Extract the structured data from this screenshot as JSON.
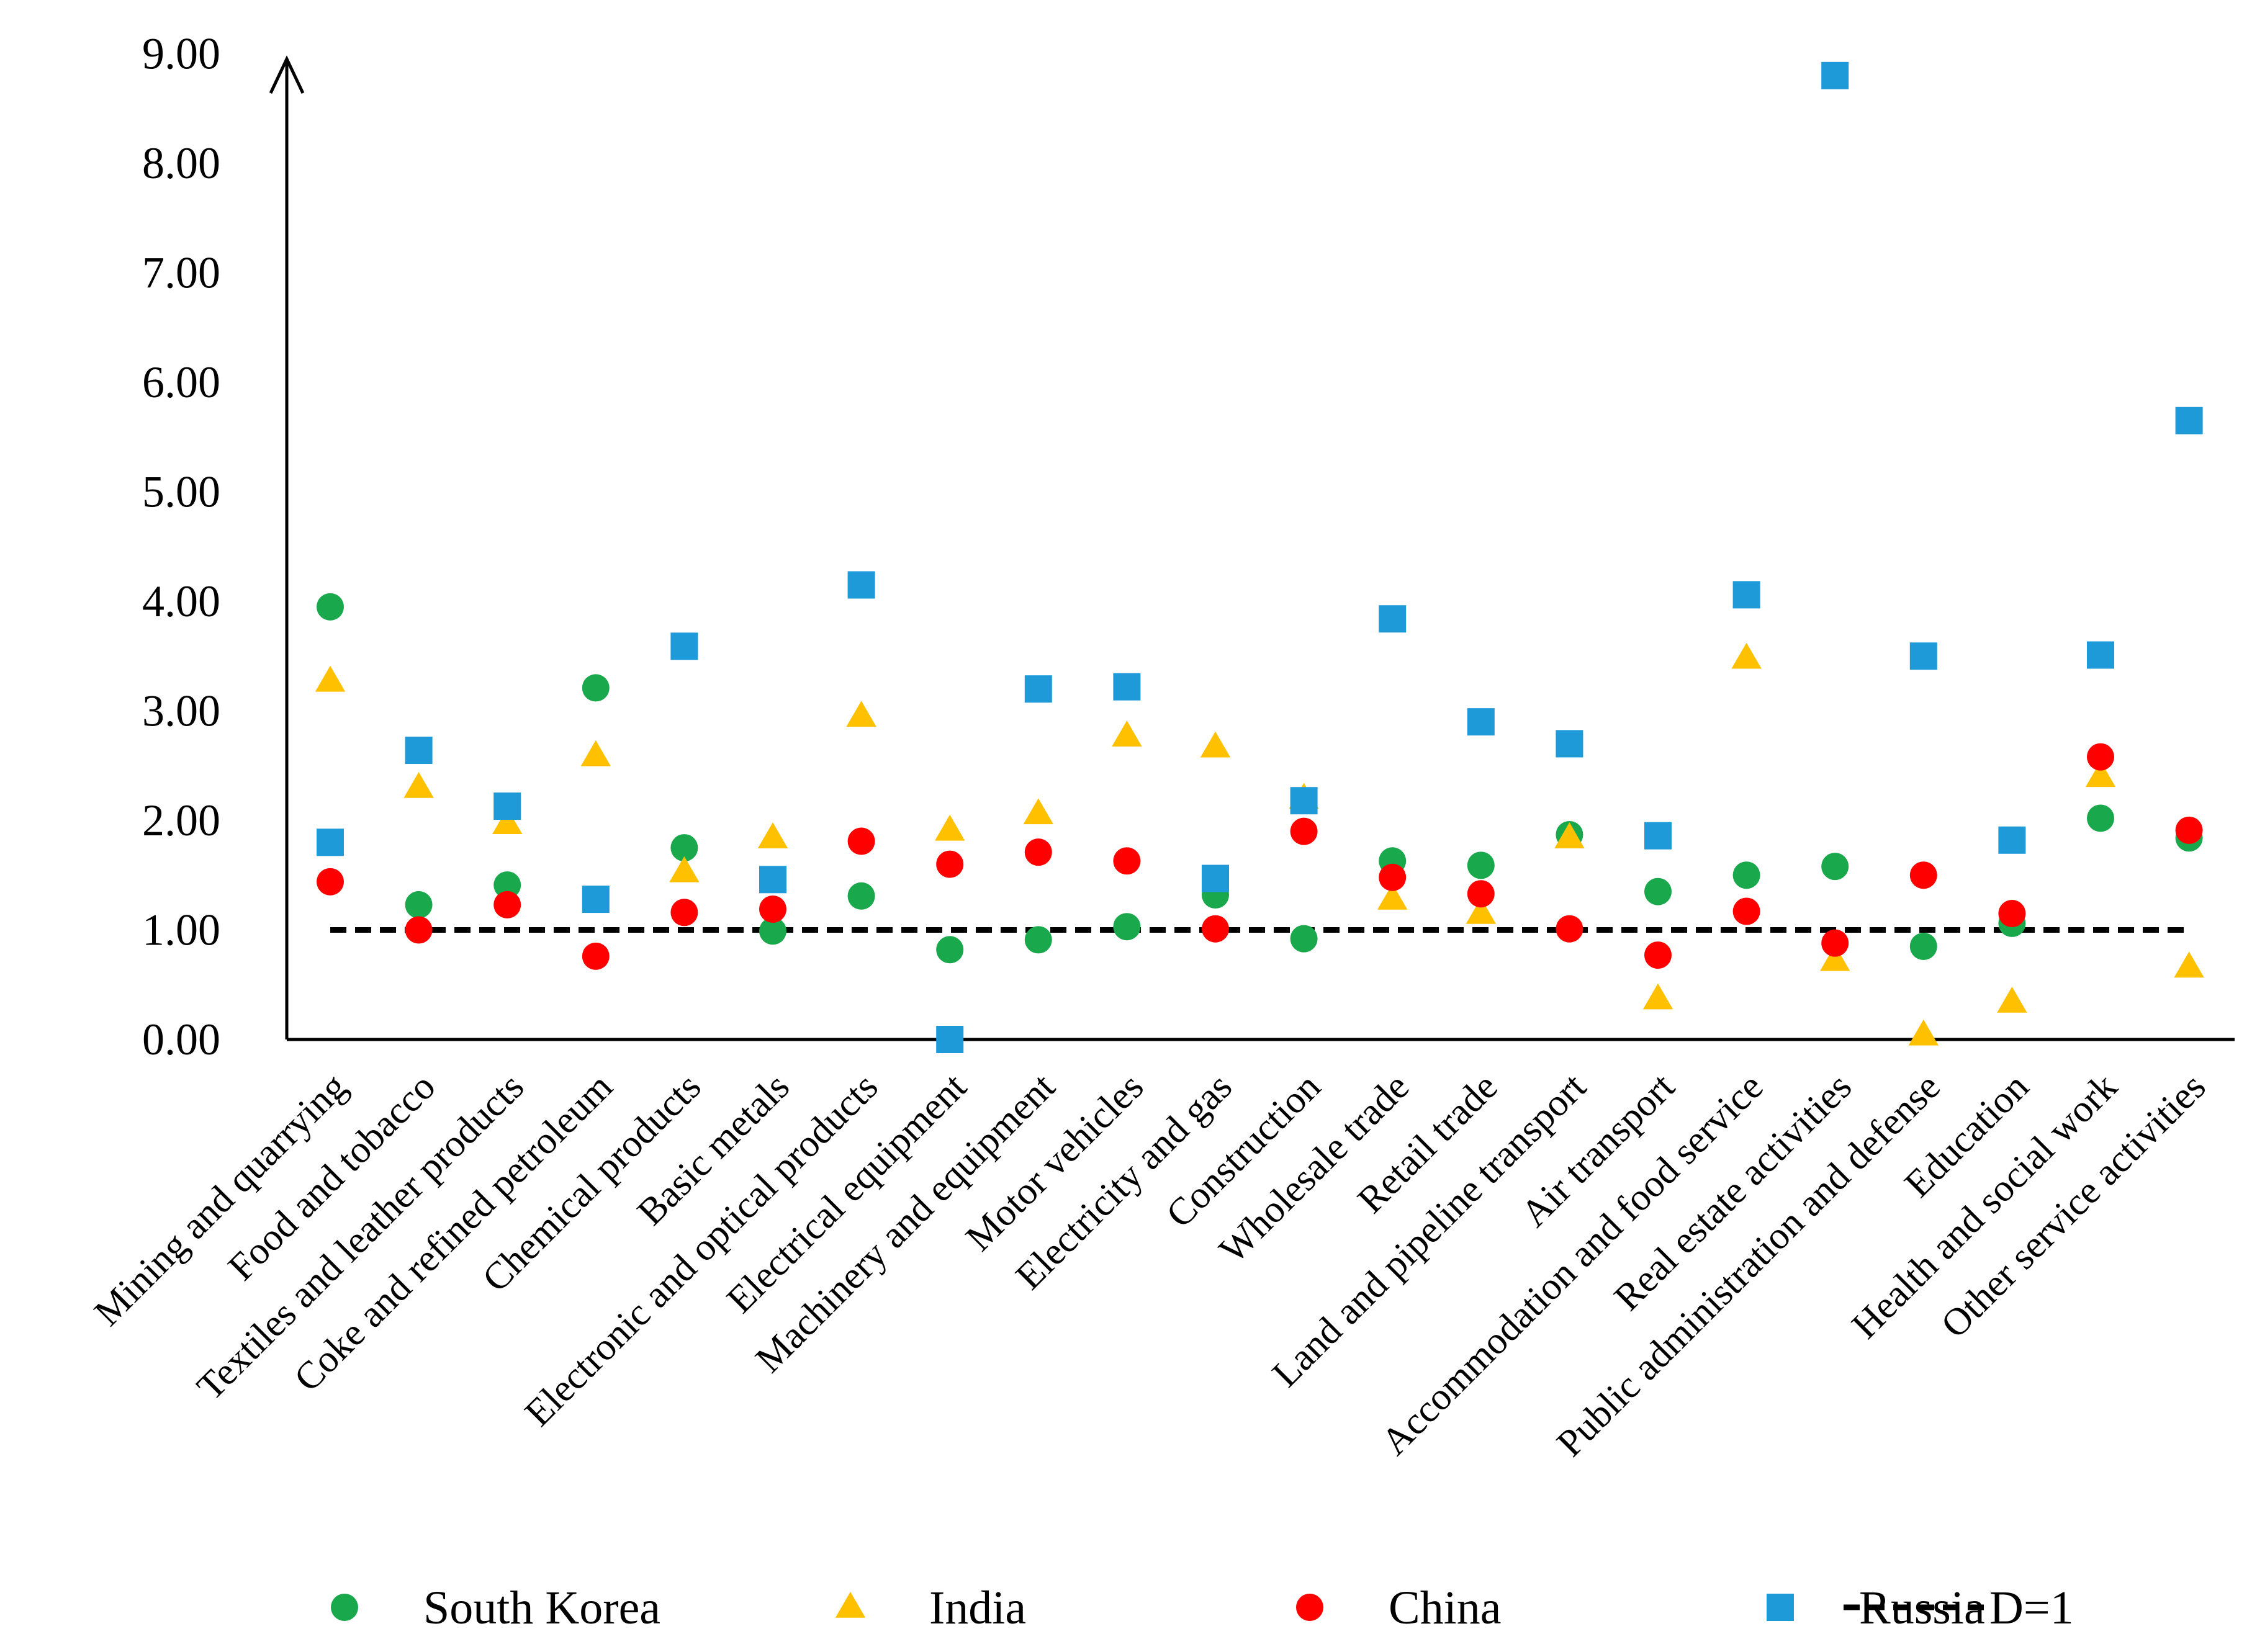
{
  "chart_data": {
    "type": "scatter",
    "title": "",
    "xlabel": "",
    "ylabel": "",
    "ylim": [
      0,
      9
    ],
    "y_ticks": [
      "0.00",
      "1.00",
      "2.00",
      "3.00",
      "4.00",
      "5.00",
      "6.00",
      "7.00",
      "8.00",
      "9.00"
    ],
    "categories": [
      "Mining and quarrying",
      "Food and tobacco",
      "Textiles and leather products",
      "Coke and refined petroleum",
      "Chemical products",
      "Basic metals",
      "Electronic and optical products",
      "Electrical equipment",
      "Machinery and equipment",
      "Motor vehicles",
      "Electricity and gas",
      "Construction",
      "Wholesale trade",
      "Retail trade",
      "Land and pipeline transport",
      "Air transport",
      "Accommodation and food service",
      "Real estate activities",
      "Public administration and defense",
      "Education",
      "Health and social work",
      "Other service activities"
    ],
    "series": [
      {
        "name": "South Korea",
        "marker": "circle",
        "color": "#1aa84c",
        "values": [
          3.95,
          1.23,
          1.41,
          3.21,
          1.75,
          0.99,
          1.31,
          0.82,
          0.91,
          1.03,
          1.32,
          0.92,
          1.63,
          1.59,
          1.87,
          1.35,
          1.5,
          1.58,
          0.85,
          1.06,
          2.02,
          1.84
        ]
      },
      {
        "name": "India",
        "marker": "triangle",
        "color": "#ffc000",
        "values": [
          3.27,
          2.3,
          1.97,
          2.59,
          1.53,
          1.84,
          2.95,
          1.91,
          2.06,
          2.77,
          2.67,
          2.2,
          1.28,
          1.15,
          1.84,
          0.37,
          3.48,
          0.72,
          0.04,
          0.34,
          2.4,
          0.66
        ]
      },
      {
        "name": "China",
        "marker": "circle",
        "color": "#ff0000",
        "values": [
          1.44,
          1.0,
          1.23,
          0.76,
          1.16,
          1.19,
          1.81,
          1.6,
          1.71,
          1.63,
          1.01,
          1.9,
          1.48,
          1.33,
          1.01,
          0.77,
          1.17,
          0.88,
          1.5,
          1.15,
          2.58,
          1.91
        ]
      },
      {
        "name": "Russia",
        "marker": "square",
        "color": "#1f9ad9",
        "values": [
          1.8,
          2.64,
          2.13,
          1.28,
          3.59,
          1.46,
          4.15,
          0.0,
          3.2,
          3.22,
          1.47,
          2.18,
          3.84,
          2.9,
          2.7,
          1.86,
          4.06,
          8.8,
          3.5,
          1.82,
          3.51,
          5.65
        ]
      }
    ],
    "reference_line": {
      "name": "D=1",
      "value": 1.0,
      "style": "dashed",
      "color": "#000000"
    },
    "legend": {
      "position": "bottom",
      "items": [
        "South Korea",
        "India",
        "China",
        "Russia",
        "D=1"
      ]
    }
  }
}
